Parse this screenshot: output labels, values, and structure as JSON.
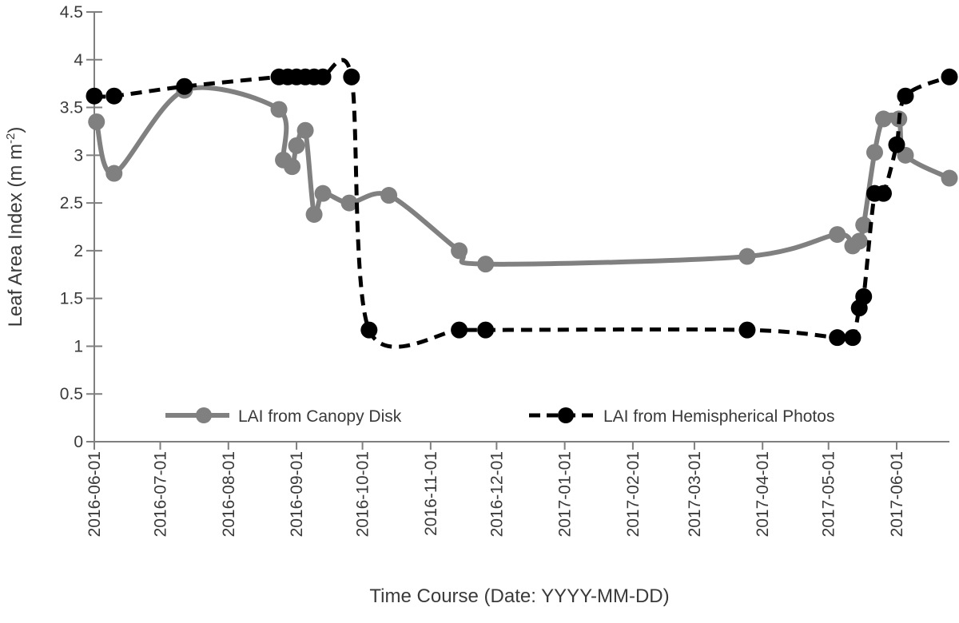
{
  "chart_data": {
    "type": "line",
    "title": "",
    "xlabel": "Time Course (Date: YYYY-MM-DD)",
    "ylabel": "Leaf Area Index (m m",
    "ylabel_superscript": "-2",
    "ylabel_suffix": ")",
    "ylim": [
      0,
      4.5
    ],
    "yticks": [
      "0",
      "0.5",
      "1",
      "1.5",
      "2",
      "2.5",
      "3",
      "3.5",
      "4",
      "4.5"
    ],
    "xlim": [
      "2016-06-01",
      "2017-06-25"
    ],
    "xticks": [
      "2016-06-01",
      "2016-07-01",
      "2016-08-01",
      "2016-09-01",
      "2016-10-01",
      "2016-11-01",
      "2016-12-01",
      "2017-01-01",
      "2017-02-01",
      "2017-03-01",
      "2017-04-01",
      "2017-05-01",
      "2017-06-01"
    ],
    "grid": false,
    "legend_placement": "bottom",
    "series": [
      {
        "name": "LAI from Canopy Disk",
        "color": "#808080",
        "style": "solid-smoothed",
        "points": [
          [
            "2016-06-02",
            3.35
          ],
          [
            "2016-06-10",
            2.81
          ],
          [
            "2016-07-12",
            3.68
          ],
          [
            "2016-08-24",
            3.48
          ],
          [
            "2016-08-26",
            2.95
          ],
          [
            "2016-08-30",
            2.88
          ],
          [
            "2016-09-01",
            3.1
          ],
          [
            "2016-09-05",
            3.26
          ],
          [
            "2016-09-09",
            2.38
          ],
          [
            "2016-09-13",
            2.6
          ],
          [
            "2016-09-25",
            2.5
          ],
          [
            "2016-10-13",
            2.58
          ],
          [
            "2016-11-14",
            2.0
          ],
          [
            "2016-11-26",
            1.86
          ],
          [
            "2017-03-25",
            1.94
          ],
          [
            "2017-05-05",
            2.17
          ],
          [
            "2017-05-12",
            2.05
          ],
          [
            "2017-05-15",
            2.1
          ],
          [
            "2017-05-17",
            2.27
          ],
          [
            "2017-05-22",
            3.03
          ],
          [
            "2017-05-26",
            3.38
          ],
          [
            "2017-06-02",
            3.38
          ],
          [
            "2017-06-05",
            3.0
          ],
          [
            "2017-06-25",
            2.76
          ]
        ]
      },
      {
        "name": "LAI from Hemispherical Photos",
        "color": "#000000",
        "style": "dashed-smoothed",
        "points": [
          [
            "2016-06-01",
            3.62
          ],
          [
            "2016-06-10",
            3.62
          ],
          [
            "2016-07-12",
            3.72
          ],
          [
            "2016-08-24",
            3.82
          ],
          [
            "2016-08-28",
            3.82
          ],
          [
            "2016-09-01",
            3.82
          ],
          [
            "2016-09-05",
            3.82
          ],
          [
            "2016-09-09",
            3.82
          ],
          [
            "2016-09-13",
            3.82
          ],
          [
            "2016-09-26",
            3.82
          ],
          [
            "2016-10-04",
            1.17
          ],
          [
            "2016-11-14",
            1.17
          ],
          [
            "2016-11-26",
            1.17
          ],
          [
            "2017-03-25",
            1.17
          ],
          [
            "2017-05-05",
            1.09
          ],
          [
            "2017-05-12",
            1.09
          ],
          [
            "2017-05-15",
            1.4
          ],
          [
            "2017-05-17",
            1.52
          ],
          [
            "2017-05-22",
            2.6
          ],
          [
            "2017-05-26",
            2.6
          ],
          [
            "2017-06-01",
            3.11
          ],
          [
            "2017-06-05",
            3.62
          ],
          [
            "2017-06-25",
            3.82
          ]
        ]
      }
    ]
  }
}
